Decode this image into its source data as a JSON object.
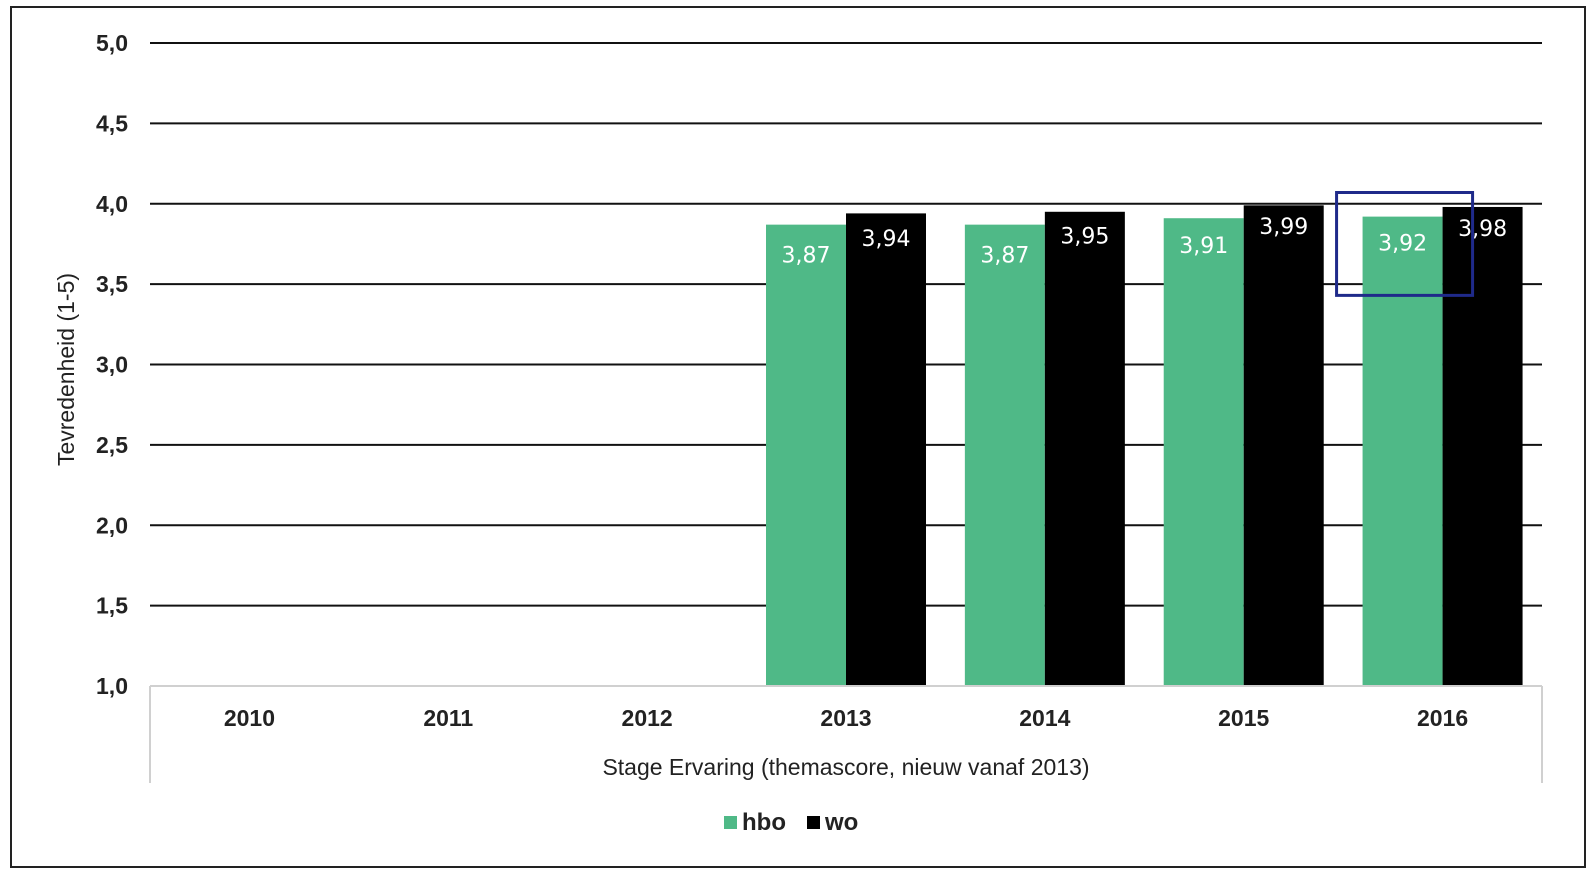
{
  "chart_data": {
    "type": "bar",
    "categories": [
      "2010",
      "2011",
      "2012",
      "2013",
      "2014",
      "2015",
      "2016"
    ],
    "series": [
      {
        "name": "hbo",
        "color": "#4fb987",
        "values": [
          null,
          null,
          null,
          3.87,
          3.87,
          3.91,
          3.92
        ],
        "labels": [
          "",
          "",
          "",
          "3,87",
          "3,87",
          "3,91",
          "3,92"
        ]
      },
      {
        "name": "wo",
        "color": "#000000",
        "values": [
          null,
          null,
          null,
          3.94,
          3.95,
          3.99,
          3.98
        ],
        "labels": [
          "",
          "",
          "",
          "3,94",
          "3,95",
          "3,99",
          "3,98"
        ]
      }
    ],
    "ylim": [
      1.0,
      5.0
    ],
    "yticks": [
      "1,0",
      "1,5",
      "2,0",
      "2,5",
      "3,0",
      "3,5",
      "4,0",
      "4,5",
      "5,0"
    ],
    "ylabel": "Tevredenheid (1-5)",
    "xlabel": "Stage Ervaring (themascore, nieuw vanaf 2013)",
    "grid": true,
    "legend_position": "bottom-center",
    "highlight": {
      "category": "2016",
      "color": "#1f2a8a"
    }
  }
}
